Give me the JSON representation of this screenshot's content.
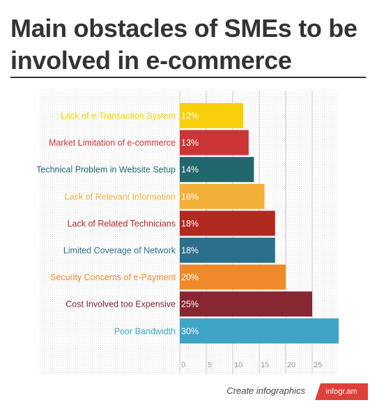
{
  "title": "Main obstacles of SMEs to be involved in e-commerce",
  "footer": {
    "text": "Create infographics",
    "badge": "infogr.am"
  },
  "chart_data": {
    "type": "bar",
    "orientation": "horizontal",
    "title": "",
    "xlabel": "",
    "ylabel": "",
    "grid": true,
    "xlim": [
      0,
      30
    ],
    "xticks": [
      0,
      5,
      10,
      15,
      20,
      25
    ],
    "categories": [
      "Lack of e-Transaction System",
      "Market Limitation of e-commerce",
      "Technical Problem in Website Setup",
      "Lack of Relevant Information",
      "Lack of Related Technicians",
      "Limited Coverage of Network",
      "Security Concerns of e-Payment",
      "Cost Involved too Expensive",
      "Poor Bandwidth"
    ],
    "values": [
      12,
      13,
      14,
      16,
      18,
      18,
      20,
      25,
      30
    ],
    "value_labels": [
      "12%",
      "13%",
      "14%",
      "16%",
      "18%",
      "18%",
      "20%",
      "25%",
      "30%"
    ],
    "colors": [
      "#f8cf0a",
      "#cc3536",
      "#22666e",
      "#f2b038",
      "#b1291f",
      "#2b6f8c",
      "#ee8a2c",
      "#862731",
      "#3fa5c7"
    ]
  }
}
